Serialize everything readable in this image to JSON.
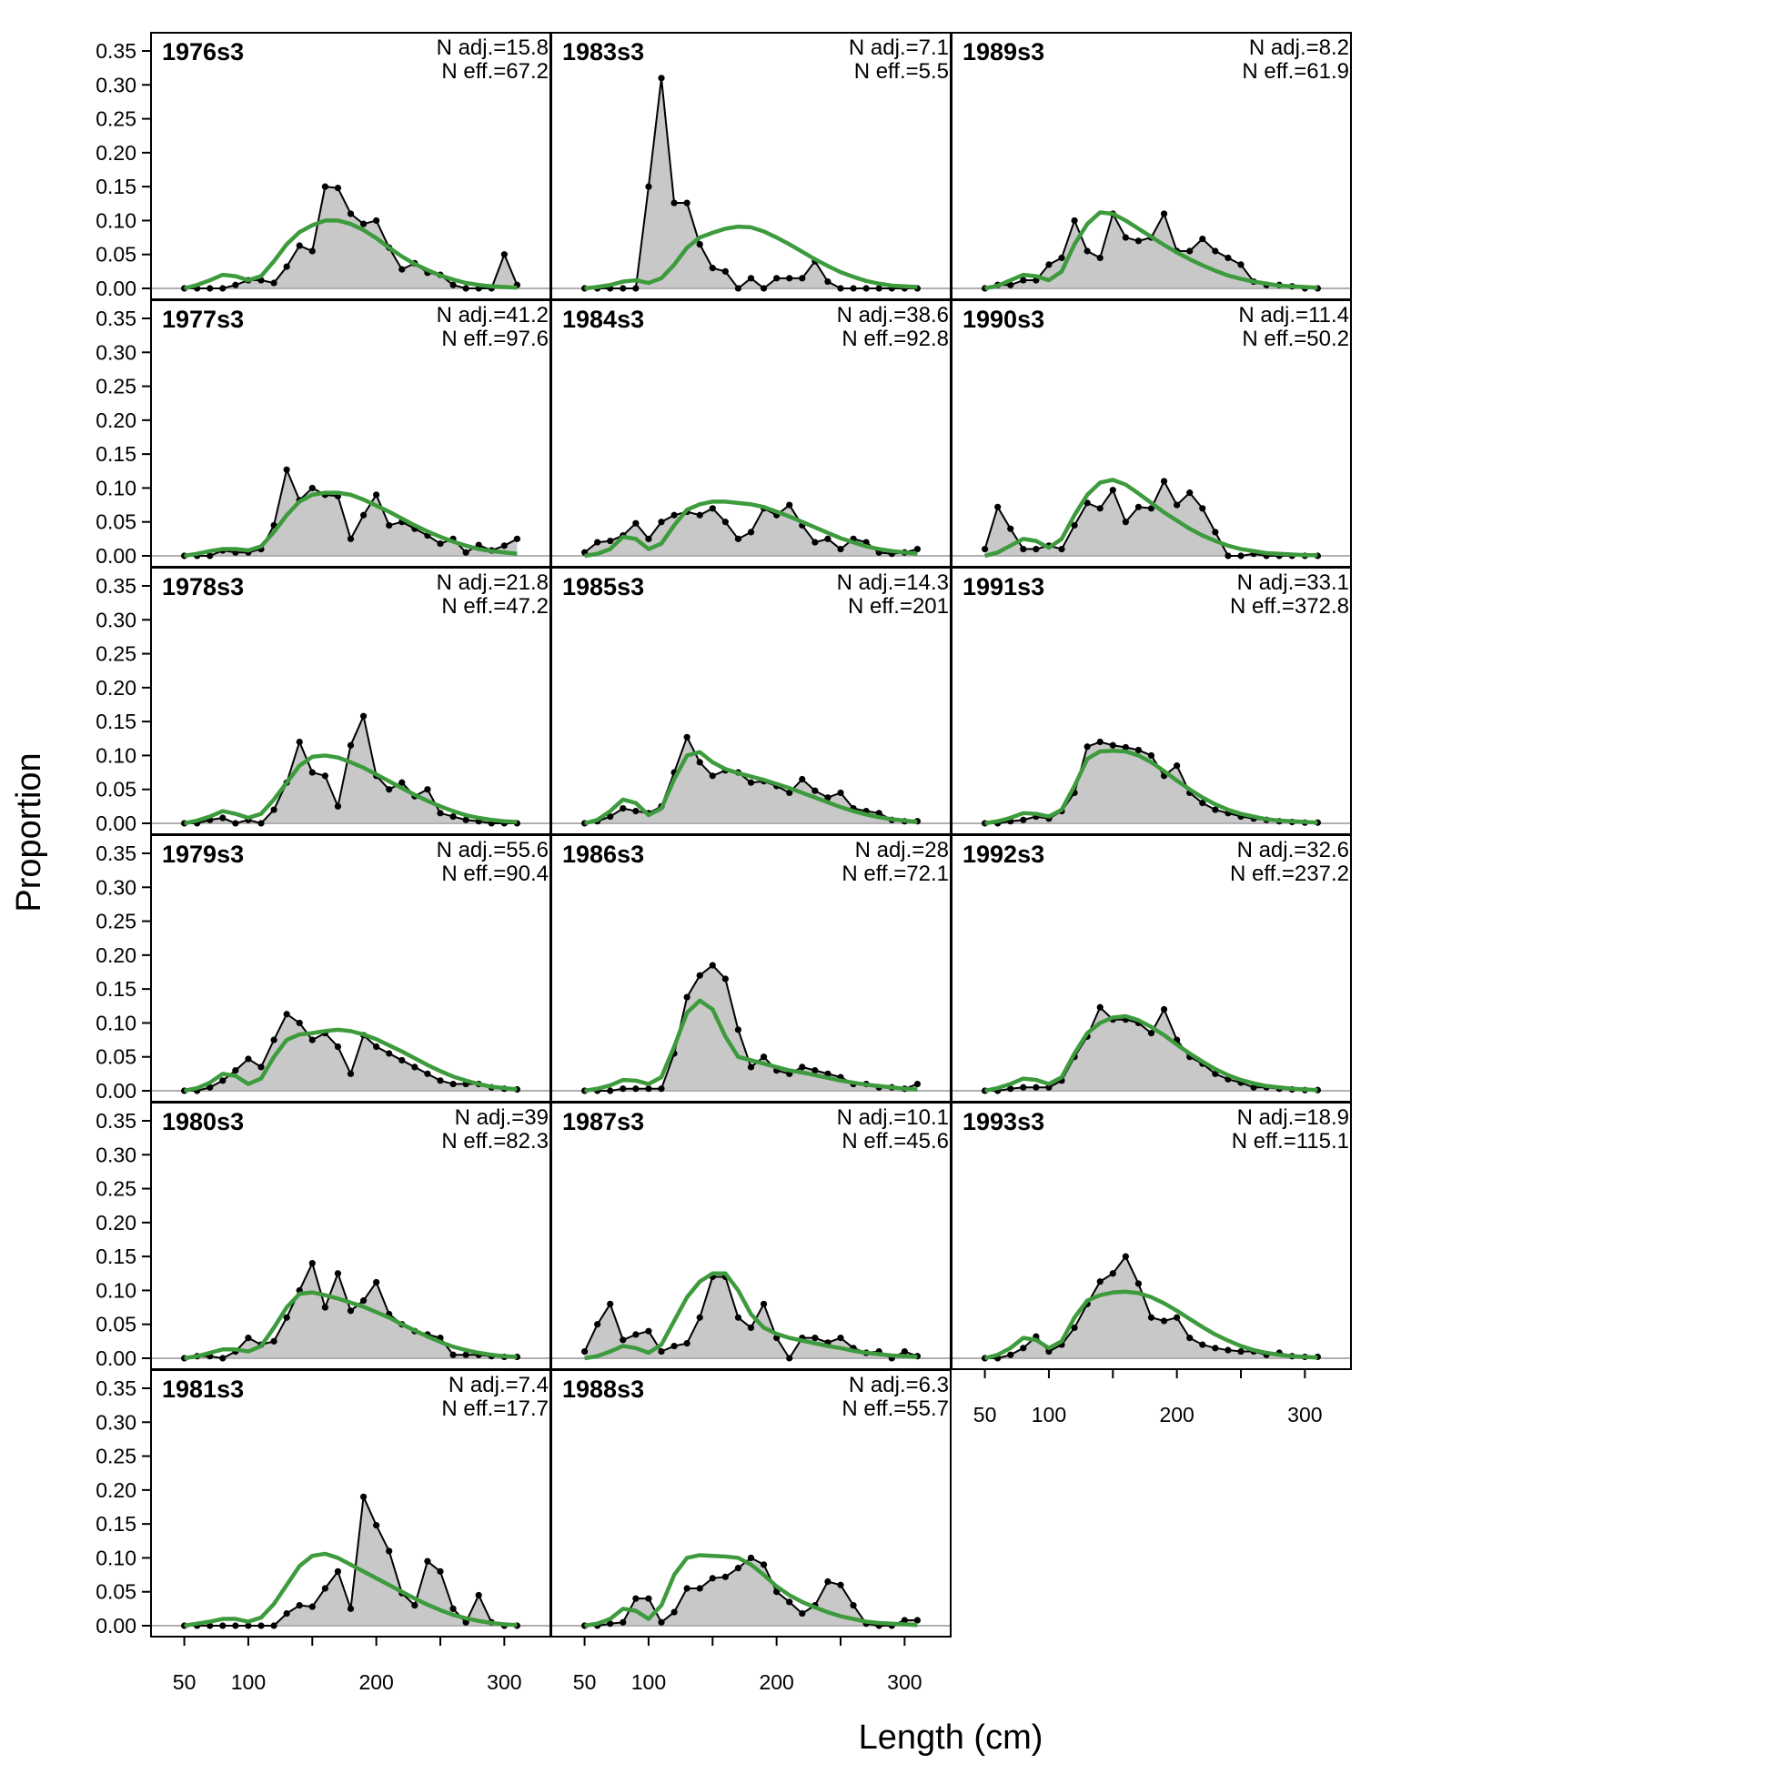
{
  "chart_data": {
    "type": "line",
    "xlabel": "Length (cm)",
    "ylabel": "Proportion",
    "xlim": [
      24,
      336
    ],
    "ylim": [
      0,
      0.35
    ],
    "x_ticks": [
      50,
      100,
      200,
      300
    ],
    "y_ticks": [
      0,
      0.05,
      0.1,
      0.15,
      0.2,
      0.25,
      0.3,
      0.35
    ],
    "y_tick_labels": [
      "0.00",
      "0.05",
      "0.10",
      "0.15",
      "0.20",
      "0.25",
      "0.30",
      "0.35"
    ],
    "grid": false,
    "colors": {
      "observed_fill": "#c8c8c8",
      "observed_line": "#000000",
      "expected_line": "#3d9b3d",
      "zero_line": "#b0b0b0"
    },
    "length_bins": [
      50,
      60,
      70,
      80,
      90,
      100,
      110,
      120,
      130,
      140,
      150,
      160,
      170,
      180,
      190,
      200,
      210,
      220,
      230,
      240,
      250,
      260,
      270,
      280,
      290,
      300,
      310
    ],
    "panels": [
      {
        "title": "1976s3",
        "n_adj": "N adj.=15.8",
        "n_eff": "N eff.=67.2",
        "observed": [
          0,
          0,
          0,
          0,
          0.005,
          0.012,
          0.012,
          0.008,
          0.032,
          0.063,
          0.055,
          0.15,
          0.148,
          0.11,
          0.095,
          0.1,
          0.06,
          0.028,
          0.037,
          0.023,
          0.02,
          0.005,
          0,
          0,
          0,
          0.05,
          0.005
        ],
        "expected": [
          0,
          0.005,
          0.012,
          0.02,
          0.018,
          0.012,
          0.018,
          0.04,
          0.065,
          0.083,
          0.093,
          0.1,
          0.1,
          0.095,
          0.086,
          0.074,
          0.06,
          0.047,
          0.036,
          0.027,
          0.019,
          0.013,
          0.008,
          0.005,
          0.003,
          0.002,
          0.001
        ]
      },
      {
        "title": "1977s3",
        "n_adj": "N adj.=41.2",
        "n_eff": "N eff.=97.6",
        "observed": [
          0,
          0,
          0,
          0.008,
          0.005,
          0.005,
          0.01,
          0.045,
          0.127,
          0.082,
          0.1,
          0.09,
          0.088,
          0.025,
          0.06,
          0.09,
          0.045,
          0.05,
          0.04,
          0.03,
          0.018,
          0.025,
          0.005,
          0.016,
          0.008,
          0.015,
          0.025
        ],
        "expected": [
          0,
          0.003,
          0.007,
          0.01,
          0.01,
          0.008,
          0.014,
          0.035,
          0.06,
          0.08,
          0.09,
          0.093,
          0.093,
          0.09,
          0.083,
          0.074,
          0.065,
          0.055,
          0.045,
          0.036,
          0.028,
          0.021,
          0.015,
          0.01,
          0.007,
          0.005,
          0.003
        ]
      },
      {
        "title": "1978s3",
        "n_adj": "N adj.=21.8",
        "n_eff": "N eff.=47.2",
        "observed": [
          0,
          0,
          0.005,
          0.008,
          0,
          0.005,
          0,
          0.02,
          0.06,
          0.12,
          0.075,
          0.07,
          0.025,
          0.115,
          0.158,
          0.07,
          0.05,
          0.06,
          0.04,
          0.05,
          0.015,
          0.01,
          0.005,
          0.003,
          0,
          0,
          0
        ],
        "expected": [
          0,
          0.004,
          0.01,
          0.018,
          0.014,
          0.008,
          0.014,
          0.035,
          0.06,
          0.085,
          0.098,
          0.1,
          0.097,
          0.09,
          0.082,
          0.072,
          0.062,
          0.052,
          0.042,
          0.033,
          0.025,
          0.018,
          0.012,
          0.008,
          0.005,
          0.003,
          0.002
        ]
      },
      {
        "title": "1979s3",
        "n_adj": "N adj.=55.6",
        "n_eff": "N eff.=90.4",
        "observed": [
          0,
          0,
          0.005,
          0.015,
          0.03,
          0.047,
          0.035,
          0.075,
          0.113,
          0.1,
          0.075,
          0.085,
          0.065,
          0.025,
          0.082,
          0.065,
          0.055,
          0.045,
          0.035,
          0.025,
          0.015,
          0.01,
          0.01,
          0.01,
          0.005,
          0.003,
          0.002
        ],
        "expected": [
          0,
          0.004,
          0.012,
          0.025,
          0.022,
          0.01,
          0.018,
          0.05,
          0.075,
          0.083,
          0.085,
          0.088,
          0.09,
          0.088,
          0.083,
          0.076,
          0.067,
          0.058,
          0.048,
          0.038,
          0.029,
          0.021,
          0.015,
          0.01,
          0.006,
          0.004,
          0.002
        ]
      },
      {
        "title": "1980s3",
        "n_adj": "N adj.=39",
        "n_eff": "N eff.=82.3",
        "observed": [
          0,
          0.003,
          0.003,
          0,
          0.01,
          0.03,
          0.02,
          0.025,
          0.06,
          0.1,
          0.14,
          0.075,
          0.125,
          0.07,
          0.085,
          0.112,
          0.065,
          0.05,
          0.04,
          0.035,
          0.03,
          0.005,
          0.005,
          0.005,
          0.003,
          0.002,
          0.002
        ],
        "expected": [
          0,
          0.003,
          0.008,
          0.013,
          0.013,
          0.01,
          0.018,
          0.045,
          0.075,
          0.095,
          0.097,
          0.093,
          0.088,
          0.082,
          0.076,
          0.068,
          0.06,
          0.05,
          0.041,
          0.032,
          0.024,
          0.017,
          0.012,
          0.008,
          0.005,
          0.003,
          0.002
        ]
      },
      {
        "title": "1981s3",
        "n_adj": "N adj.=7.4",
        "n_eff": "N eff.=17.7",
        "observed": [
          0,
          0,
          0,
          0,
          0,
          0,
          0,
          0,
          0.018,
          0.03,
          0.028,
          0.055,
          0.08,
          0.025,
          0.19,
          0.148,
          0.11,
          0.048,
          0.03,
          0.095,
          0.08,
          0.025,
          0.005,
          0.045,
          0.005,
          0,
          0
        ],
        "expected": [
          0,
          0.003,
          0.006,
          0.01,
          0.01,
          0.006,
          0.012,
          0.032,
          0.06,
          0.088,
          0.103,
          0.106,
          0.1,
          0.09,
          0.08,
          0.07,
          0.06,
          0.05,
          0.04,
          0.031,
          0.023,
          0.016,
          0.011,
          0.007,
          0.004,
          0.002,
          0.001
        ]
      },
      {
        "title": "1983s3",
        "n_adj": "N adj.=7.1",
        "n_eff": "N eff.=5.5",
        "observed": [
          0,
          0,
          0,
          0,
          0,
          0.15,
          0.31,
          0.126,
          0.126,
          0.065,
          0.03,
          0.025,
          0,
          0.015,
          0,
          0.015,
          0.015,
          0.015,
          0.04,
          0.01,
          0,
          0,
          0,
          0,
          0,
          0,
          0
        ],
        "expected": [
          0,
          0.002,
          0.005,
          0.01,
          0.012,
          0.008,
          0.015,
          0.035,
          0.06,
          0.075,
          0.082,
          0.088,
          0.091,
          0.09,
          0.084,
          0.075,
          0.065,
          0.054,
          0.043,
          0.033,
          0.024,
          0.017,
          0.011,
          0.007,
          0.004,
          0.003,
          0.002
        ]
      },
      {
        "title": "1984s3",
        "n_adj": "N adj.=38.6",
        "n_eff": "N eff.=92.8",
        "observed": [
          0.005,
          0.02,
          0.022,
          0.03,
          0.048,
          0.025,
          0.05,
          0.06,
          0.065,
          0.06,
          0.07,
          0.05,
          0.025,
          0.035,
          0.07,
          0.06,
          0.075,
          0.045,
          0.02,
          0.025,
          0.01,
          0.025,
          0.02,
          0.005,
          0.003,
          0.005,
          0.01
        ],
        "expected": [
          0,
          0.003,
          0.01,
          0.028,
          0.025,
          0.01,
          0.018,
          0.045,
          0.068,
          0.076,
          0.08,
          0.08,
          0.078,
          0.076,
          0.072,
          0.065,
          0.058,
          0.05,
          0.042,
          0.034,
          0.026,
          0.02,
          0.014,
          0.01,
          0.007,
          0.005,
          0.003
        ]
      },
      {
        "title": "1985s3",
        "n_adj": "N adj.=14.3",
        "n_eff": "N eff.=201",
        "observed": [
          0,
          0.003,
          0.01,
          0.022,
          0.018,
          0.015,
          0.025,
          0.075,
          0.127,
          0.09,
          0.07,
          0.078,
          0.075,
          0.06,
          0.062,
          0.055,
          0.045,
          0.065,
          0.048,
          0.038,
          0.045,
          0.022,
          0.018,
          0.015,
          0.005,
          0.003,
          0.003
        ],
        "expected": [
          0,
          0.005,
          0.018,
          0.035,
          0.03,
          0.012,
          0.022,
          0.065,
          0.1,
          0.105,
          0.09,
          0.08,
          0.074,
          0.069,
          0.064,
          0.058,
          0.052,
          0.045,
          0.038,
          0.031,
          0.024,
          0.018,
          0.013,
          0.009,
          0.006,
          0.004,
          0.002
        ]
      },
      {
        "title": "1986s3",
        "n_adj": "N adj.=28",
        "n_eff": "N eff.=72.1",
        "observed": [
          0,
          0,
          0,
          0.003,
          0.003,
          0.003,
          0.003,
          0.055,
          0.138,
          0.17,
          0.185,
          0.165,
          0.09,
          0.035,
          0.05,
          0.03,
          0.025,
          0.035,
          0.03,
          0.025,
          0.02,
          0.01,
          0.01,
          0.005,
          0.005,
          0.003,
          0.01
        ],
        "expected": [
          0,
          0.003,
          0.008,
          0.016,
          0.015,
          0.01,
          0.02,
          0.065,
          0.115,
          0.133,
          0.12,
          0.08,
          0.05,
          0.045,
          0.04,
          0.035,
          0.03,
          0.027,
          0.023,
          0.019,
          0.015,
          0.012,
          0.009,
          0.007,
          0.005,
          0.003,
          0.002
        ]
      },
      {
        "title": "1987s3",
        "n_adj": "N adj.=10.1",
        "n_eff": "N eff.=45.6",
        "observed": [
          0.01,
          0.05,
          0.08,
          0.027,
          0.035,
          0.04,
          0.01,
          0.018,
          0.022,
          0.06,
          0.12,
          0.12,
          0.06,
          0.045,
          0.08,
          0.03,
          0,
          0.03,
          0.03,
          0.023,
          0.03,
          0.015,
          0.008,
          0.01,
          0,
          0.01,
          0.003
        ],
        "expected": [
          0,
          0.003,
          0.01,
          0.018,
          0.015,
          0.008,
          0.02,
          0.055,
          0.09,
          0.113,
          0.125,
          0.125,
          0.1,
          0.065,
          0.045,
          0.036,
          0.03,
          0.026,
          0.022,
          0.018,
          0.015,
          0.011,
          0.008,
          0.006,
          0.004,
          0.003,
          0.002
        ]
      },
      {
        "title": "1988s3",
        "n_adj": "N adj.=6.3",
        "n_eff": "N eff.=55.7",
        "observed": [
          0,
          0,
          0.003,
          0.005,
          0.04,
          0.04,
          0.005,
          0.02,
          0.055,
          0.055,
          0.07,
          0.072,
          0.085,
          0.1,
          0.09,
          0.05,
          0.035,
          0.018,
          0.03,
          0.065,
          0.06,
          0.03,
          0.003,
          0,
          0,
          0.008,
          0.008
        ],
        "expected": [
          0,
          0.003,
          0.01,
          0.025,
          0.022,
          0.01,
          0.03,
          0.075,
          0.1,
          0.104,
          0.103,
          0.102,
          0.1,
          0.09,
          0.075,
          0.058,
          0.045,
          0.035,
          0.027,
          0.02,
          0.014,
          0.01,
          0.006,
          0.004,
          0.003,
          0.002,
          0.001
        ]
      },
      {
        "title": "1989s3",
        "n_adj": "N adj.=8.2",
        "n_eff": "N eff.=61.9",
        "observed": [
          0,
          0.005,
          0.005,
          0.012,
          0.012,
          0.035,
          0.045,
          0.1,
          0.055,
          0.045,
          0.11,
          0.075,
          0.07,
          0.075,
          0.11,
          0.055,
          0.055,
          0.073,
          0.055,
          0.045,
          0.035,
          0.01,
          0.005,
          0.005,
          0.003,
          0,
          0
        ],
        "expected": [
          0,
          0.004,
          0.012,
          0.02,
          0.018,
          0.012,
          0.025,
          0.065,
          0.095,
          0.112,
          0.11,
          0.1,
          0.088,
          0.076,
          0.064,
          0.053,
          0.043,
          0.034,
          0.026,
          0.019,
          0.014,
          0.01,
          0.007,
          0.004,
          0.003,
          0.002,
          0.001
        ]
      },
      {
        "title": "1990s3",
        "n_adj": "N adj.=11.4",
        "n_eff": "N eff.=50.2",
        "observed": [
          0.01,
          0.072,
          0.04,
          0.01,
          0.01,
          0.015,
          0.01,
          0.045,
          0.078,
          0.07,
          0.097,
          0.05,
          0.072,
          0.07,
          0.11,
          0.075,
          0.093,
          0.07,
          0.035,
          0,
          0,
          0.003,
          0,
          0,
          0,
          0,
          0
        ],
        "expected": [
          0,
          0.005,
          0.015,
          0.025,
          0.022,
          0.012,
          0.025,
          0.06,
          0.09,
          0.108,
          0.112,
          0.105,
          0.092,
          0.078,
          0.064,
          0.052,
          0.04,
          0.03,
          0.022,
          0.015,
          0.01,
          0.007,
          0.004,
          0.003,
          0.002,
          0.001,
          0.001
        ]
      },
      {
        "title": "1991s3",
        "n_adj": "N adj.=33.1",
        "n_eff": "N eff.=372.8",
        "observed": [
          0,
          0,
          0.003,
          0.005,
          0.01,
          0.007,
          0.018,
          0.045,
          0.113,
          0.12,
          0.115,
          0.112,
          0.108,
          0.1,
          0.07,
          0.085,
          0.045,
          0.03,
          0.02,
          0.015,
          0.01,
          0.007,
          0.005,
          0.003,
          0.002,
          0.001,
          0.001
        ],
        "expected": [
          0,
          0.003,
          0.008,
          0.015,
          0.014,
          0.01,
          0.02,
          0.055,
          0.095,
          0.106,
          0.107,
          0.106,
          0.1,
          0.09,
          0.077,
          0.063,
          0.05,
          0.038,
          0.028,
          0.02,
          0.014,
          0.01,
          0.006,
          0.004,
          0.003,
          0.002,
          0.001
        ]
      },
      {
        "title": "1992s3",
        "n_adj": "N adj.=32.6",
        "n_eff": "N eff.=237.2",
        "observed": [
          0,
          0,
          0.003,
          0.005,
          0.005,
          0.005,
          0.015,
          0.05,
          0.08,
          0.123,
          0.105,
          0.105,
          0.1,
          0.085,
          0.12,
          0.075,
          0.05,
          0.04,
          0.025,
          0.017,
          0.012,
          0.005,
          0.005,
          0.003,
          0.002,
          0.001,
          0.001
        ],
        "expected": [
          0,
          0.004,
          0.01,
          0.018,
          0.016,
          0.01,
          0.02,
          0.055,
          0.085,
          0.1,
          0.108,
          0.11,
          0.104,
          0.094,
          0.082,
          0.068,
          0.055,
          0.043,
          0.032,
          0.023,
          0.016,
          0.011,
          0.007,
          0.005,
          0.003,
          0.002,
          0.001
        ]
      },
      {
        "title": "1993s3",
        "n_adj": "N adj.=18.9",
        "n_eff": "N eff.=115.1",
        "observed": [
          0,
          0,
          0.005,
          0.015,
          0.032,
          0.01,
          0.02,
          0.045,
          0.08,
          0.113,
          0.125,
          0.15,
          0.11,
          0.06,
          0.055,
          0.06,
          0.03,
          0.02,
          0.015,
          0.012,
          0.01,
          0.01,
          0.005,
          0.008,
          0.003,
          0.002,
          0.002
        ],
        "expected": [
          0,
          0.005,
          0.015,
          0.03,
          0.027,
          0.015,
          0.025,
          0.06,
          0.085,
          0.093,
          0.097,
          0.098,
          0.096,
          0.09,
          0.081,
          0.07,
          0.058,
          0.046,
          0.035,
          0.026,
          0.018,
          0.012,
          0.008,
          0.005,
          0.003,
          0.002,
          0.001
        ]
      }
    ]
  }
}
